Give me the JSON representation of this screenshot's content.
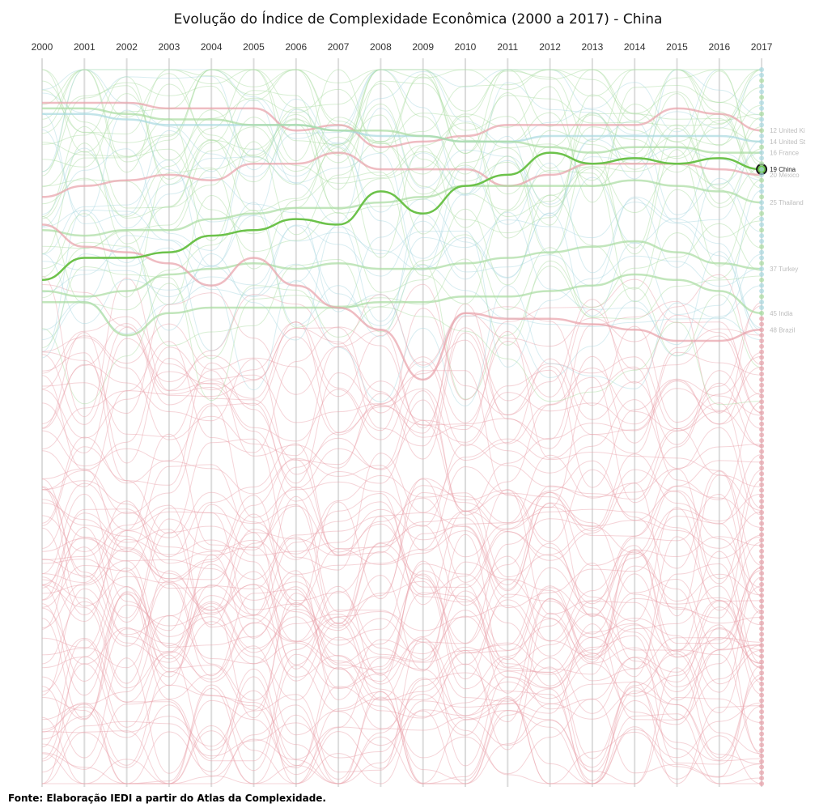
{
  "title": "Evolução do Índice de Complexidade Econômica (2000 a 2017) - China",
  "source": "Fonte: Elaboração IEDI a partir do Atlas da Complexidade.",
  "chart_data": {
    "type": "line",
    "title": "Evolução do Índice de Complexidade Econômica (2000 a 2017) - China",
    "xlabel": "",
    "ylabel": "",
    "x": [
      2000,
      2001,
      2002,
      2003,
      2004,
      2005,
      2006,
      2007,
      2008,
      2009,
      2010,
      2011,
      2012,
      2013,
      2014,
      2015,
      2016,
      2017
    ],
    "y_type": "rank (1 at top)",
    "ylim": [
      1,
      130
    ],
    "grid": true,
    "highlight_series": "China",
    "colors": {
      "focus": "#6cc24a",
      "focus_stroke": "#1a1a1a",
      "red_bg": "#e8a0a8",
      "green_bg": "#a8dca0",
      "blue_bg": "#a8d8e0",
      "grid": "#dcdcdc"
    },
    "series": [
      {
        "name": "China",
        "color": "green",
        "focus": true,
        "values": [
          39,
          35,
          35,
          34,
          31,
          30,
          28,
          29,
          23,
          27,
          22,
          20,
          16,
          18,
          17,
          18,
          17,
          19
        ]
      },
      {
        "name": "United Kingdom",
        "color": "red",
        "values": [
          7,
          7,
          7,
          8,
          8,
          8,
          12,
          11,
          15,
          14,
          13,
          11,
          11,
          11,
          11,
          8,
          9,
          12
        ]
      },
      {
        "name": "United States",
        "color": "blue",
        "values": [
          9,
          9,
          10,
          11,
          11,
          11,
          11,
          12,
          13,
          13,
          14,
          14,
          13,
          13,
          13,
          13,
          13,
          14
        ]
      },
      {
        "name": "France",
        "color": "green",
        "values": [
          8,
          8,
          9,
          10,
          10,
          11,
          11,
          12,
          12,
          13,
          14,
          14,
          15,
          16,
          15,
          15,
          16,
          16
        ]
      },
      {
        "name": "Mexico",
        "color": "red",
        "values": [
          24,
          22,
          21,
          20,
          21,
          18,
          18,
          16,
          19,
          19,
          19,
          22,
          20,
          18,
          18,
          18,
          19,
          20
        ]
      },
      {
        "name": "Thailand",
        "color": "green",
        "values": [
          30,
          31,
          30,
          30,
          28,
          27,
          26,
          26,
          25,
          24,
          22,
          22,
          22,
          22,
          21,
          22,
          23,
          25
        ]
      },
      {
        "name": "Turkey",
        "color": "green",
        "values": [
          41,
          42,
          41,
          38,
          37,
          36,
          37,
          36,
          37,
          37,
          36,
          35,
          34,
          33,
          32,
          34,
          36,
          37
        ]
      },
      {
        "name": "India",
        "color": "green",
        "values": [
          43,
          43,
          49,
          45,
          44,
          44,
          44,
          44,
          43,
          43,
          42,
          42,
          41,
          40,
          38,
          39,
          41,
          45
        ]
      },
      {
        "name": "Brazil",
        "color": "red",
        "values": [
          29,
          33,
          34,
          36,
          40,
          35,
          40,
          44,
          48,
          57,
          45,
          46,
          46,
          47,
          48,
          50,
          50,
          48
        ]
      }
    ],
    "end_labels": [
      {
        "rank": 12,
        "text": "United Ki"
      },
      {
        "rank": 14,
        "text": "United St"
      },
      {
        "rank": 16,
        "text": "France"
      },
      {
        "rank": 19,
        "text": "China"
      },
      {
        "rank": 20,
        "text": "Mexico"
      },
      {
        "rank": 25,
        "text": "Thailand"
      },
      {
        "rank": 37,
        "text": "Turkey"
      },
      {
        "rank": 45,
        "text": "India"
      },
      {
        "rank": 48,
        "text": "Brazil"
      }
    ]
  }
}
